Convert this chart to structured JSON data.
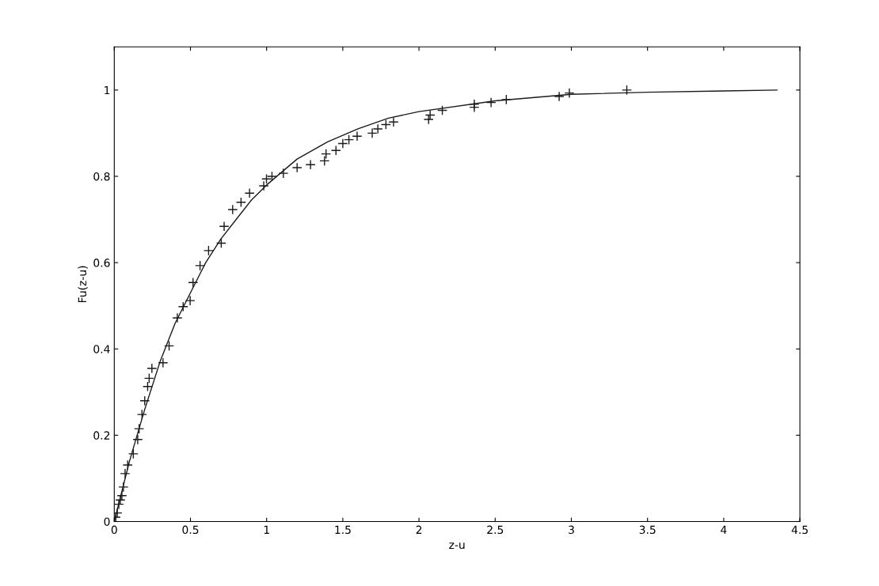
{
  "chart_data": {
    "type": "scatter",
    "xlabel": "z-u",
    "ylabel": "Fu(z-u)",
    "xlim": [
      0,
      4.5
    ],
    "ylim": [
      0,
      1.1
    ],
    "xticks": [
      0,
      0.5,
      1,
      1.5,
      2,
      2.5,
      3,
      3.5,
      4,
      4.5
    ],
    "yticks": [
      0,
      0.2,
      0.4,
      0.6,
      0.8,
      1
    ],
    "grid": false,
    "legend": false,
    "series": [
      {
        "marker": "cross",
        "color": "#1a1a1a",
        "x": [
          0.01,
          0.02,
          0.03,
          0.04,
          0.05,
          0.06,
          0.071,
          0.088,
          0.125,
          0.154,
          0.163,
          0.182,
          0.2,
          0.219,
          0.229,
          0.247,
          0.32,
          0.36,
          0.414,
          0.452,
          0.498,
          0.517,
          0.563,
          0.619,
          0.702,
          0.721,
          0.777,
          0.832,
          0.888,
          0.981,
          0.999,
          1.035,
          1.11,
          1.2,
          1.288,
          1.38,
          1.39,
          1.455,
          1.5,
          1.54,
          1.594,
          1.693,
          1.73,
          1.783,
          1.833,
          2.063,
          2.073,
          2.153,
          2.363,
          2.363,
          2.473,
          2.573,
          2.92,
          2.987,
          3.364
        ],
        "values": [
          0.01,
          0.02,
          0.04,
          0.05,
          0.06,
          0.08,
          0.111,
          0.131,
          0.157,
          0.19,
          0.215,
          0.248,
          0.28,
          0.313,
          0.332,
          0.355,
          0.368,
          0.407,
          0.472,
          0.498,
          0.512,
          0.554,
          0.593,
          0.628,
          0.645,
          0.684,
          0.723,
          0.74,
          0.761,
          0.778,
          0.794,
          0.8,
          0.807,
          0.82,
          0.827,
          0.836,
          0.852,
          0.86,
          0.876,
          0.885,
          0.893,
          0.9,
          0.91,
          0.92,
          0.926,
          0.932,
          0.942,
          0.953,
          0.96,
          0.967,
          0.971,
          0.978,
          0.985,
          0.993,
          1.0
        ]
      },
      {
        "type": "line",
        "marker": "none",
        "line_style": "solid",
        "color": "#1a1a1a",
        "x": [
          0,
          0.1,
          0.2,
          0.3,
          0.4,
          0.5,
          0.6,
          0.7,
          0.8,
          0.9,
          1.0,
          1.2,
          1.4,
          1.6,
          1.8,
          2.0,
          2.5,
          3.0,
          3.5,
          4.0,
          4.35
        ],
        "values": [
          0,
          0.14,
          0.26,
          0.37,
          0.46,
          0.53,
          0.6,
          0.655,
          0.7,
          0.745,
          0.78,
          0.84,
          0.88,
          0.91,
          0.935,
          0.95,
          0.975,
          0.99,
          0.995,
          0.998,
          1.0
        ]
      }
    ]
  }
}
